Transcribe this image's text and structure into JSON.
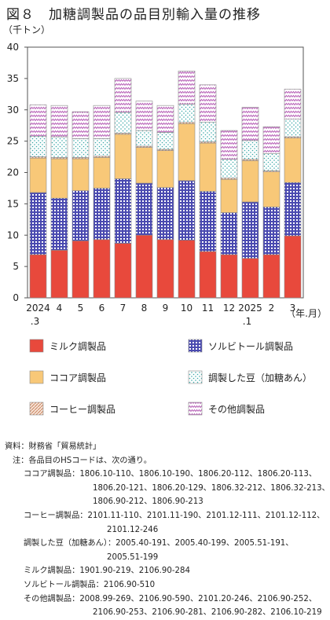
{
  "title": "図８　加糖調製品の品目別輸入量の推移",
  "chart_data": {
    "type": "bar",
    "stacked": true,
    "ylabel": "（千トン）",
    "xlabel": "（年.月）",
    "ylim": [
      0,
      40
    ],
    "yticks": [
      0,
      5,
      10,
      15,
      20,
      25,
      30,
      35,
      40
    ],
    "grid": false,
    "legend_position": "bottom",
    "categories": [
      {
        "top": "2024",
        "bottom": ".3"
      },
      {
        "top": "4",
        "bottom": ""
      },
      {
        "top": "5",
        "bottom": ""
      },
      {
        "top": "6",
        "bottom": ""
      },
      {
        "top": "7",
        "bottom": ""
      },
      {
        "top": "8",
        "bottom": ""
      },
      {
        "top": "9",
        "bottom": ""
      },
      {
        "top": "10",
        "bottom": ""
      },
      {
        "top": "11",
        "bottom": ""
      },
      {
        "top": "12",
        "bottom": ""
      },
      {
        "top": "2025",
        "bottom": ".1"
      },
      {
        "top": "2",
        "bottom": ""
      },
      {
        "top": "3",
        "bottom": ""
      }
    ],
    "series": [
      {
        "name": "ミルク調製品",
        "color": "#e8493c",
        "pattern": "solid",
        "values": [
          6.9,
          7.6,
          9.1,
          9.3,
          8.7,
          10.0,
          9.3,
          9.2,
          7.4,
          6.9,
          6.3,
          6.9,
          9.9
        ]
      },
      {
        "name": "ソルビトール調製品",
        "color": "#4a4ab0",
        "pattern": "grid",
        "values": [
          9.9,
          8.3,
          8.0,
          8.2,
          10.3,
          8.3,
          8.3,
          9.5,
          9.6,
          6.7,
          9.0,
          7.6,
          8.5
        ]
      },
      {
        "name": "ココア調製品",
        "color": "#f8c878",
        "pattern": "solid",
        "values": [
          5.5,
          6.3,
          5.1,
          4.9,
          7.1,
          5.7,
          5.9,
          9.1,
          7.7,
          5.3,
          6.6,
          5.6,
          7.1
        ]
      },
      {
        "name": "コーヒー調製品",
        "color": "#d9a384",
        "pattern": "diag",
        "values": [
          0.2,
          0.2,
          0.2,
          0.2,
          0.2,
          0.2,
          0.2,
          0.2,
          0.2,
          0.2,
          0.2,
          0.2,
          0.2
        ]
      },
      {
        "name": "調製した豆（加糖あん）",
        "color": "#5ab9b9",
        "pattern": "dots",
        "values": [
          3.3,
          3.3,
          3.0,
          2.8,
          3.3,
          2.5,
          2.7,
          2.9,
          3.1,
          3.0,
          3.0,
          2.7,
          2.8
        ]
      },
      {
        "name": "その他調製品",
        "color": "#b760b7",
        "pattern": "zigzag",
        "values": [
          5.0,
          5.0,
          4.3,
          5.3,
          5.4,
          4.7,
          4.3,
          5.3,
          6.0,
          4.6,
          5.3,
          4.3,
          4.8
        ]
      }
    ]
  },
  "notes": {
    "source": "資料：財務省「貿易統計」",
    "note_head": "注：各品目のHSコードは、次の通り。",
    "items": [
      {
        "label": "ココア調製品：",
        "lines": [
          "1806.10-110、1806.10-190、1806.20-112、1806.20-113、",
          "1806.20-121、1806.20-129、1806.32-212、1806.32-213、",
          "1806.90-212、1806.90-213"
        ]
      },
      {
        "label": "コーヒー調製品：",
        "lines": [
          "2101.11-110、2101.11-190、2101.12-111、2101.12-112、",
          "2101.12-246"
        ]
      },
      {
        "label": "調製した豆（加糖あん）：",
        "lines": [
          "2005.40-191、2005.40-199、2005.51-191、",
          "2005.51-199"
        ]
      },
      {
        "label": "ミルク調製品：",
        "lines": [
          "1901.90-219、2106.90-284"
        ]
      },
      {
        "label": "ソルビトール調製品：",
        "lines": [
          "2106.90-510"
        ]
      },
      {
        "label": "その他調製品：",
        "lines": [
          "2008.99-269、2106.90-590、2101.20-246、2106.90-252、",
          "2106.90-253、2106.90-281、2106.90-282、2106.10-219"
        ]
      }
    ]
  }
}
